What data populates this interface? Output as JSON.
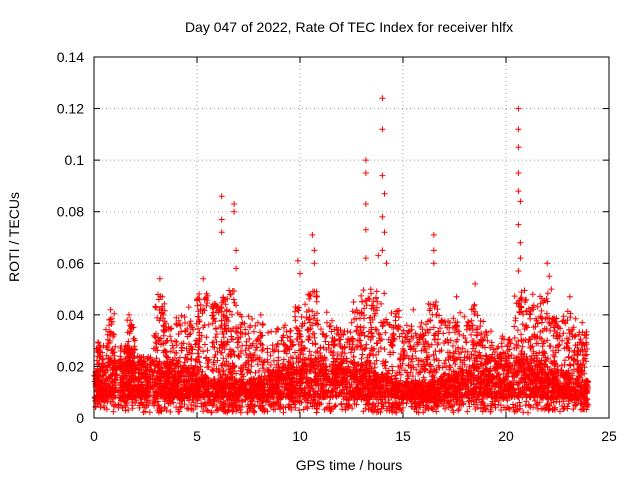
{
  "chart_data": {
    "type": "scatter",
    "title": "Day 047 of 2022, Rate Of TEC Index for receiver hlfx",
    "xlabel": "GPS time / hours",
    "ylabel": "ROTI / TECUs",
    "xlim": [
      0,
      25
    ],
    "ylim": [
      0,
      0.14
    ],
    "x_ticks": [
      0,
      5,
      10,
      15,
      20,
      25
    ],
    "y_ticks": [
      0,
      0.02,
      0.04,
      0.06,
      0.08,
      0.1,
      0.12,
      0.14
    ],
    "x_tick_labels": [
      "0",
      "5",
      "10",
      "15",
      "20",
      "25"
    ],
    "y_tick_labels": [
      "0",
      "0.02",
      "0.04",
      "0.06",
      "0.08",
      "0.1",
      "0.12",
      "0.14"
    ],
    "grid": true,
    "marker": "+",
    "color": "#ff0000",
    "baseline_band": {
      "x_range": [
        0,
        24
      ],
      "typical_max": [
        0.012,
        0.022
      ]
    },
    "notable_points": [
      {
        "x": 0.8,
        "y": 0.042
      },
      {
        "x": 1.7,
        "y": 0.04
      },
      {
        "x": 3.2,
        "y": 0.054
      },
      {
        "x": 4.6,
        "y": 0.043
      },
      {
        "x": 5.3,
        "y": 0.054
      },
      {
        "x": 6.2,
        "y": 0.086
      },
      {
        "x": 6.2,
        "y": 0.077
      },
      {
        "x": 6.2,
        "y": 0.072
      },
      {
        "x": 6.8,
        "y": 0.083
      },
      {
        "x": 6.8,
        "y": 0.08
      },
      {
        "x": 6.9,
        "y": 0.065
      },
      {
        "x": 6.9,
        "y": 0.058
      },
      {
        "x": 8.1,
        "y": 0.04
      },
      {
        "x": 9.9,
        "y": 0.061
      },
      {
        "x": 10.0,
        "y": 0.056
      },
      {
        "x": 10.6,
        "y": 0.071
      },
      {
        "x": 10.7,
        "y": 0.065
      },
      {
        "x": 10.7,
        "y": 0.06
      },
      {
        "x": 11.3,
        "y": 0.041
      },
      {
        "x": 12.6,
        "y": 0.045
      },
      {
        "x": 13.2,
        "y": 0.1
      },
      {
        "x": 13.2,
        "y": 0.095
      },
      {
        "x": 13.2,
        "y": 0.083
      },
      {
        "x": 13.2,
        "y": 0.073
      },
      {
        "x": 13.2,
        "y": 0.062
      },
      {
        "x": 13.8,
        "y": 0.063
      },
      {
        "x": 14.0,
        "y": 0.124
      },
      {
        "x": 14.0,
        "y": 0.112
      },
      {
        "x": 14.0,
        "y": 0.094
      },
      {
        "x": 14.1,
        "y": 0.087
      },
      {
        "x": 14.0,
        "y": 0.078
      },
      {
        "x": 14.1,
        "y": 0.072
      },
      {
        "x": 14.0,
        "y": 0.065
      },
      {
        "x": 14.2,
        "y": 0.06
      },
      {
        "x": 15.5,
        "y": 0.042
      },
      {
        "x": 16.5,
        "y": 0.071
      },
      {
        "x": 16.5,
        "y": 0.065
      },
      {
        "x": 16.5,
        "y": 0.06
      },
      {
        "x": 16.6,
        "y": 0.045
      },
      {
        "x": 17.6,
        "y": 0.047
      },
      {
        "x": 18.5,
        "y": 0.052
      },
      {
        "x": 20.6,
        "y": 0.12
      },
      {
        "x": 20.6,
        "y": 0.112
      },
      {
        "x": 20.6,
        "y": 0.105
      },
      {
        "x": 20.6,
        "y": 0.095
      },
      {
        "x": 20.6,
        "y": 0.088
      },
      {
        "x": 20.7,
        "y": 0.084
      },
      {
        "x": 20.6,
        "y": 0.075
      },
      {
        "x": 20.7,
        "y": 0.068
      },
      {
        "x": 20.7,
        "y": 0.062
      },
      {
        "x": 20.6,
        "y": 0.057
      },
      {
        "x": 21.3,
        "y": 0.048
      },
      {
        "x": 22.0,
        "y": 0.06
      },
      {
        "x": 22.1,
        "y": 0.055
      },
      {
        "x": 22.2,
        "y": 0.05
      },
      {
        "x": 23.1,
        "y": 0.047
      },
      {
        "x": 23.7,
        "y": 0.037
      }
    ],
    "activity_clusters": [
      {
        "x_center": 0.3,
        "x_width": 0.4,
        "peak": 0.03
      },
      {
        "x_center": 0.8,
        "x_width": 0.5,
        "peak": 0.041
      },
      {
        "x_center": 1.5,
        "x_width": 0.5,
        "peak": 0.028
      },
      {
        "x_center": 1.8,
        "x_width": 0.4,
        "peak": 0.038
      },
      {
        "x_center": 2.4,
        "x_width": 0.5,
        "peak": 0.022
      },
      {
        "x_center": 3.2,
        "x_width": 0.6,
        "peak": 0.048
      },
      {
        "x_center": 3.6,
        "x_width": 0.5,
        "peak": 0.036
      },
      {
        "x_center": 4.2,
        "x_width": 0.6,
        "peak": 0.04
      },
      {
        "x_center": 4.8,
        "x_width": 0.7,
        "peak": 0.038
      },
      {
        "x_center": 5.3,
        "x_width": 0.6,
        "peak": 0.05
      },
      {
        "x_center": 6.0,
        "x_width": 0.6,
        "peak": 0.045
      },
      {
        "x_center": 6.4,
        "x_width": 0.5,
        "peak": 0.05
      },
      {
        "x_center": 6.9,
        "x_width": 0.6,
        "peak": 0.05
      },
      {
        "x_center": 7.4,
        "x_width": 0.6,
        "peak": 0.04
      },
      {
        "x_center": 8.0,
        "x_width": 0.6,
        "peak": 0.038
      },
      {
        "x_center": 8.7,
        "x_width": 0.6,
        "peak": 0.035
      },
      {
        "x_center": 9.4,
        "x_width": 0.6,
        "peak": 0.036
      },
      {
        "x_center": 10.0,
        "x_width": 0.5,
        "peak": 0.045
      },
      {
        "x_center": 10.6,
        "x_width": 0.6,
        "peak": 0.05
      },
      {
        "x_center": 11.3,
        "x_width": 0.7,
        "peak": 0.038
      },
      {
        "x_center": 12.0,
        "x_width": 0.7,
        "peak": 0.035
      },
      {
        "x_center": 12.7,
        "x_width": 0.6,
        "peak": 0.042
      },
      {
        "x_center": 13.2,
        "x_width": 0.5,
        "peak": 0.05
      },
      {
        "x_center": 13.8,
        "x_width": 0.7,
        "peak": 0.05
      },
      {
        "x_center": 14.5,
        "x_width": 0.7,
        "peak": 0.042
      },
      {
        "x_center": 15.2,
        "x_width": 0.7,
        "peak": 0.036
      },
      {
        "x_center": 15.9,
        "x_width": 0.6,
        "peak": 0.038
      },
      {
        "x_center": 16.5,
        "x_width": 0.6,
        "peak": 0.045
      },
      {
        "x_center": 17.2,
        "x_width": 0.7,
        "peak": 0.042
      },
      {
        "x_center": 17.9,
        "x_width": 0.7,
        "peak": 0.043
      },
      {
        "x_center": 18.6,
        "x_width": 0.6,
        "peak": 0.045
      },
      {
        "x_center": 19.3,
        "x_width": 0.7,
        "peak": 0.034
      },
      {
        "x_center": 20.0,
        "x_width": 0.7,
        "peak": 0.032
      },
      {
        "x_center": 20.7,
        "x_width": 0.6,
        "peak": 0.05
      },
      {
        "x_center": 21.3,
        "x_width": 0.6,
        "peak": 0.045
      },
      {
        "x_center": 21.9,
        "x_width": 0.6,
        "peak": 0.05
      },
      {
        "x_center": 22.5,
        "x_width": 0.6,
        "peak": 0.04
      },
      {
        "x_center": 23.1,
        "x_width": 0.6,
        "peak": 0.042
      },
      {
        "x_center": 23.7,
        "x_width": 0.5,
        "peak": 0.035
      }
    ]
  }
}
